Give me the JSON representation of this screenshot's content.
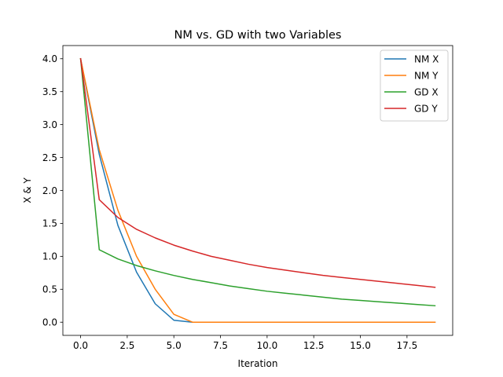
{
  "chart_data": {
    "type": "line",
    "title": "NM vs. GD with two Variables",
    "xlabel": "Iteration",
    "ylabel": "X & Y",
    "xlim": [
      -0.95,
      19.95
    ],
    "ylim": [
      -0.2,
      4.2
    ],
    "xticks": [
      0.0,
      2.5,
      5.0,
      7.5,
      10.0,
      12.5,
      15.0,
      17.5
    ],
    "xtick_labels": [
      "0.0",
      "2.5",
      "5.0",
      "7.5",
      "10.0",
      "12.5",
      "15.0",
      "17.5"
    ],
    "yticks": [
      0.0,
      0.5,
      1.0,
      1.5,
      2.0,
      2.5,
      3.0,
      3.5,
      4.0
    ],
    "ytick_labels": [
      "0.0",
      "0.5",
      "1.0",
      "1.5",
      "2.0",
      "2.5",
      "3.0",
      "3.5",
      "4.0"
    ],
    "grid": false,
    "legend_position": "top-right",
    "x": [
      0,
      1,
      2,
      3,
      4,
      5,
      6,
      7,
      8,
      9,
      10,
      11,
      12,
      13,
      14,
      15,
      16,
      17,
      18,
      19
    ],
    "series": [
      {
        "name": "NM X",
        "color": "#1f77b4",
        "values": [
          4.0,
          2.55,
          1.47,
          0.76,
          0.28,
          0.03,
          0.0,
          0.0,
          0.0,
          0.0,
          0.0,
          0.0,
          0.0,
          0.0,
          0.0,
          0.0,
          0.0,
          0.0,
          0.0,
          0.0
        ]
      },
      {
        "name": "NM Y",
        "color": "#ff7f0e",
        "values": [
          4.0,
          2.62,
          1.7,
          1.0,
          0.5,
          0.12,
          0.0,
          0.0,
          0.0,
          0.0,
          0.0,
          0.0,
          0.0,
          0.0,
          0.0,
          0.0,
          0.0,
          0.0,
          0.0,
          0.0
        ]
      },
      {
        "name": "GD X",
        "color": "#2ca02c",
        "values": [
          4.0,
          1.1,
          0.96,
          0.86,
          0.78,
          0.71,
          0.65,
          0.6,
          0.55,
          0.51,
          0.47,
          0.44,
          0.41,
          0.38,
          0.35,
          0.33,
          0.31,
          0.29,
          0.27,
          0.25
        ]
      },
      {
        "name": "GD Y",
        "color": "#d62728",
        "values": [
          4.0,
          1.86,
          1.59,
          1.41,
          1.28,
          1.17,
          1.08,
          1.0,
          0.94,
          0.88,
          0.83,
          0.79,
          0.75,
          0.71,
          0.68,
          0.65,
          0.62,
          0.59,
          0.56,
          0.53
        ]
      }
    ]
  }
}
